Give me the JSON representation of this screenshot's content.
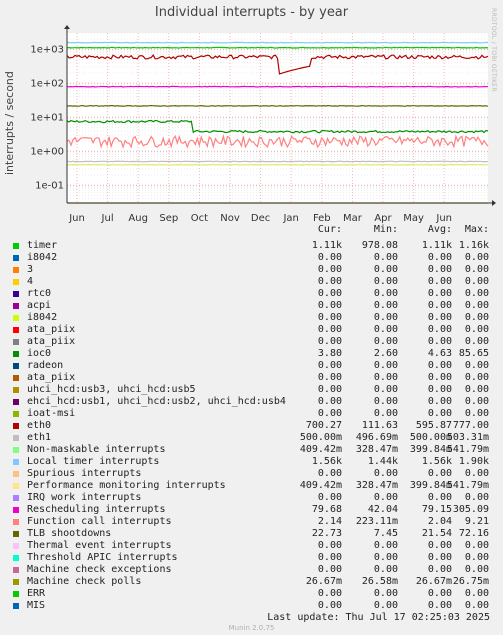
{
  "chart_data": {
    "type": "line",
    "title": "Individual interrupts - by year",
    "ylabel": "interrupts / second",
    "yscale": "log",
    "ylim": [
      0.03,
      3000
    ],
    "y_ticks": [
      {
        "value": 1000,
        "label": "1e+03"
      },
      {
        "value": 100,
        "label": "1e+02"
      },
      {
        "value": 10,
        "label": "1e+01"
      },
      {
        "value": 1,
        "label": "1e+00"
      },
      {
        "value": 0.1,
        "label": "1e-01"
      }
    ],
    "x_ticks": [
      "Jun",
      "Jul",
      "Aug",
      "Sep",
      "Oct",
      "Nov",
      "Dec",
      "Jan",
      "Feb",
      "Mar",
      "Apr",
      "May",
      "Jun"
    ],
    "grid": true,
    "columns": [
      "Cur:",
      "Min:",
      "Avg:",
      "Max:"
    ],
    "series": [
      {
        "name": "timer",
        "color": "#00cc00",
        "values": [
          "1.11k",
          "978.08",
          "1.11k",
          "1.16k"
        ]
      },
      {
        "name": "i8042",
        "color": "#0066b3",
        "values": [
          "0.00",
          "0.00",
          "0.00",
          "0.00"
        ]
      },
      {
        "name": "3",
        "color": "#ff8000",
        "values": [
          "0.00",
          "0.00",
          "0.00",
          "0.00"
        ]
      },
      {
        "name": "4",
        "color": "#ffcc00",
        "values": [
          "0.00",
          "0.00",
          "0.00",
          "0.00"
        ]
      },
      {
        "name": "rtc0",
        "color": "#330099",
        "values": [
          "0.00",
          "0.00",
          "0.00",
          "0.00"
        ]
      },
      {
        "name": "acpi",
        "color": "#990099",
        "values": [
          "0.00",
          "0.00",
          "0.00",
          "0.00"
        ]
      },
      {
        "name": "i8042",
        "color": "#ccff00",
        "values": [
          "0.00",
          "0.00",
          "0.00",
          "0.00"
        ]
      },
      {
        "name": "ata_piix",
        "color": "#ff0000",
        "values": [
          "0.00",
          "0.00",
          "0.00",
          "0.00"
        ]
      },
      {
        "name": "ata_piix",
        "color": "#808080",
        "values": [
          "0.00",
          "0.00",
          "0.00",
          "0.00"
        ]
      },
      {
        "name": "ioc0",
        "color": "#008f00",
        "values": [
          "3.80",
          "2.60",
          "4.63",
          "85.65"
        ]
      },
      {
        "name": "radeon",
        "color": "#00487d",
        "values": [
          "0.00",
          "0.00",
          "0.00",
          "0.00"
        ]
      },
      {
        "name": "ata_piix",
        "color": "#b35a00",
        "values": [
          "0.00",
          "0.00",
          "0.00",
          "0.00"
        ]
      },
      {
        "name": "uhci_hcd:usb3, uhci_hcd:usb5",
        "color": "#b38f00",
        "values": [
          "0.00",
          "0.00",
          "0.00",
          "0.00"
        ]
      },
      {
        "name": "ehci_hcd:usb1, uhci_hcd:usb2, uhci_hcd:usb4",
        "color": "#6b006b",
        "values": [
          "0.00",
          "0.00",
          "0.00",
          "0.00"
        ]
      },
      {
        "name": "ioat-msi",
        "color": "#8fb300",
        "values": [
          "0.00",
          "0.00",
          "0.00",
          "0.00"
        ]
      },
      {
        "name": "eth0",
        "color": "#b30000",
        "values": [
          "700.27",
          "111.63",
          "595.87",
          "777.00"
        ]
      },
      {
        "name": "eth1",
        "color": "#bebebe",
        "values": [
          "500.00m",
          "496.69m",
          "500.00m",
          "503.31m"
        ]
      },
      {
        "name": "Non-maskable interrupts",
        "color": "#80ff80",
        "values": [
          "409.42m",
          "328.47m",
          "399.84m",
          "541.79m"
        ]
      },
      {
        "name": "Local timer interrupts",
        "color": "#80c9ff",
        "values": [
          "1.56k",
          "1.44k",
          "1.56k",
          "1.90k"
        ]
      },
      {
        "name": "Spurious interrupts",
        "color": "#ffc080",
        "values": [
          "0.00",
          "0.00",
          "0.00",
          "0.00"
        ]
      },
      {
        "name": "Performance monitoring interrupts",
        "color": "#ffe680",
        "values": [
          "409.42m",
          "328.47m",
          "399.84m",
          "541.79m"
        ]
      },
      {
        "name": "IRQ work interrupts",
        "color": "#aa80ff",
        "values": [
          "0.00",
          "0.00",
          "0.00",
          "0.00"
        ]
      },
      {
        "name": "Rescheduling interrupts",
        "color": "#ee00cc",
        "values": [
          "79.68",
          "42.04",
          "79.15",
          "305.09"
        ]
      },
      {
        "name": "Function call interrupts",
        "color": "#ff8080",
        "values": [
          "2.14",
          "223.11m",
          "2.04",
          "9.21"
        ]
      },
      {
        "name": "TLB shootdowns",
        "color": "#666600",
        "values": [
          "22.73",
          "7.45",
          "21.54",
          "72.16"
        ]
      },
      {
        "name": "Thermal event interrupts",
        "color": "#ffbfff",
        "values": [
          "0.00",
          "0.00",
          "0.00",
          "0.00"
        ]
      },
      {
        "name": "Threshold APIC interrupts",
        "color": "#00ffcc",
        "values": [
          "0.00",
          "0.00",
          "0.00",
          "0.00"
        ]
      },
      {
        "name": "Machine check exceptions",
        "color": "#cc6699",
        "values": [
          "0.00",
          "0.00",
          "0.00",
          "0.00"
        ]
      },
      {
        "name": "Machine check polls",
        "color": "#999900",
        "values": [
          "26.67m",
          "26.58m",
          "26.67m",
          "26.75m"
        ]
      },
      {
        "name": "ERR",
        "color": "#00cc00",
        "values": [
          "0.00",
          "0.00",
          "0.00",
          "0.00"
        ]
      },
      {
        "name": "MIS",
        "color": "#0066b3",
        "values": [
          "0.00",
          "0.00",
          "0.00",
          "0.00"
        ]
      }
    ]
  },
  "footer": {
    "last_update": "Last update: Thu Jul 17 02:25:03 2025",
    "credit": "Munin 2.0.75"
  },
  "watermark": "RRDTOOL / TOBI OETIKER"
}
